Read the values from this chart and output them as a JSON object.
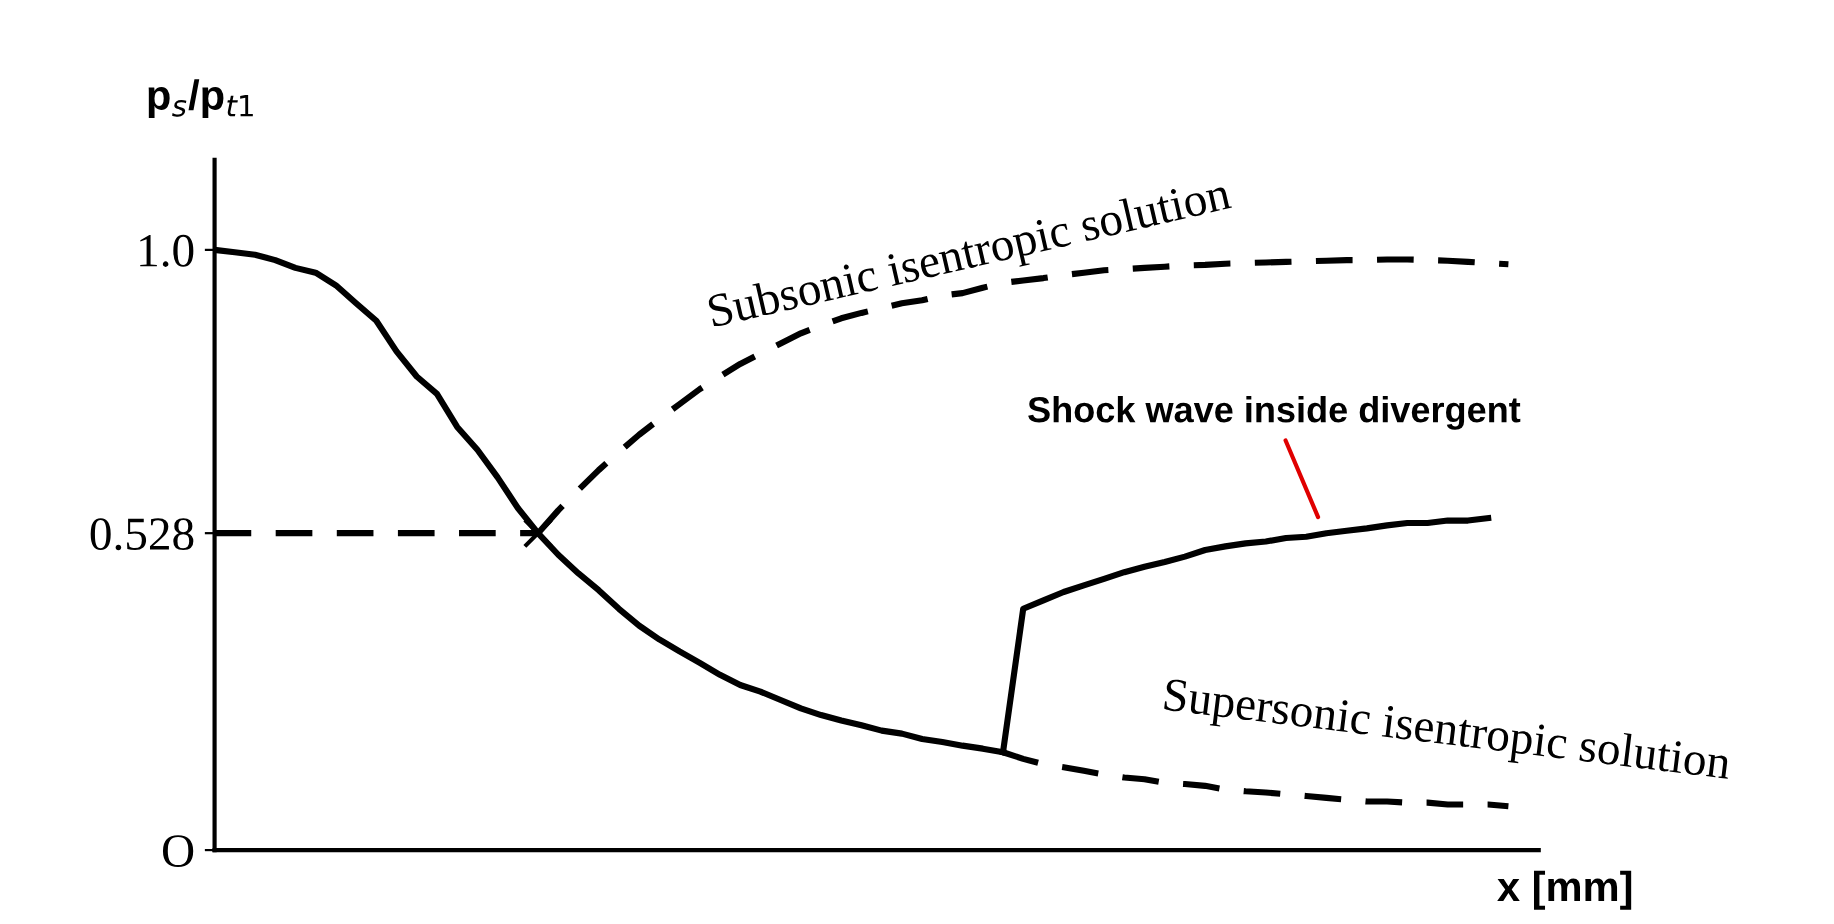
{
  "chart_data": {
    "type": "line",
    "xlabel": "x [mm]",
    "ylabel": "p$_{s}$/p$_{t1}$",
    "ylim": [
      0,
      1.15
    ],
    "yticks": [
      {
        "value": 0,
        "label": "O"
      },
      0.528,
      {
        "value": 1.0,
        "label": "1.0"
      }
    ],
    "tick_labels": "y",
    "categories": [
      null,
      null,
      null,
      null,
      null,
      null,
      null,
      null,
      null,
      null,
      null,
      null,
      null,
      null,
      null,
      null,
      null,
      null,
      null,
      null,
      null,
      null,
      null,
      null,
      null,
      null,
      null,
      null,
      null,
      null,
      null,
      null,
      null,
      null,
      null,
      null,
      null,
      null,
      null,
      null,
      null,
      null,
      null,
      null,
      null,
      null,
      null,
      null,
      null,
      null,
      null,
      null,
      null,
      null,
      null,
      null,
      null,
      null,
      null,
      null,
      null,
      null,
      null,
      null,
      null
    ],
    "series": [
      {
        "color": "#000000",
        "line_style": "solid",
        "values": [
          1.0,
          0.996,
          0.992,
          0.983,
          0.97,
          0.962,
          0.941,
          0.911,
          0.882,
          0.831,
          0.789,
          0.76,
          0.705,
          0.667,
          0.621,
          0.57,
          0.528,
          0.492,
          0.461,
          0.433,
          0.402,
          0.374,
          0.351,
          0.331,
          0.312,
          0.292,
          0.275,
          0.264,
          0.25,
          0.236,
          0.225,
          0.216,
          0.208,
          0.199,
          0.194,
          0.185,
          0.18,
          0.174,
          0.169,
          0.163,
          null,
          null,
          null,
          null,
          null,
          null,
          null,
          null,
          null,
          null,
          null,
          null,
          null,
          null,
          null,
          null,
          null,
          null,
          null,
          null,
          null,
          null,
          null,
          null,
          null
        ]
      },
      {
        "color": "#000000",
        "line_style": "dashed",
        "values": [
          null,
          null,
          null,
          null,
          null,
          null,
          null,
          null,
          null,
          null,
          null,
          null,
          null,
          null,
          null,
          null,
          0.528,
          0.566,
          0.6,
          0.633,
          0.663,
          0.692,
          0.718,
          0.743,
          0.768,
          0.789,
          0.81,
          0.827,
          0.844,
          0.861,
          0.874,
          0.886,
          0.895,
          0.903,
          0.911,
          0.916,
          0.924,
          0.928,
          0.937,
          0.945,
          0.949,
          0.953,
          0.958,
          0.962,
          0.966,
          0.968,
          0.97,
          0.972,
          0.974,
          0.975,
          0.977,
          0.978,
          0.979,
          0.98,
          0.981,
          0.982,
          0.983,
          0.983,
          0.984,
          0.984,
          0.983,
          0.982,
          0.98,
          0.978,
          0.976
        ]
      },
      {
        "color": "#000000",
        "line_style": "dashed",
        "values": [
          null,
          null,
          null,
          null,
          null,
          null,
          null,
          null,
          null,
          null,
          null,
          null,
          null,
          null,
          null,
          null,
          null,
          null,
          null,
          null,
          null,
          null,
          null,
          null,
          null,
          null,
          null,
          null,
          null,
          null,
          null,
          null,
          null,
          null,
          null,
          null,
          null,
          null,
          null,
          0.163,
          0.152,
          0.143,
          0.138,
          0.132,
          0.126,
          0.121,
          0.118,
          0.112,
          0.11,
          0.107,
          0.101,
          0.098,
          0.096,
          0.093,
          0.09,
          0.087,
          0.084,
          0.081,
          0.081,
          0.079,
          0.079,
          0.076,
          0.076,
          0.076,
          0.073
        ]
      },
      {
        "color": "#000000",
        "line_style": "solid",
        "values": [
          null,
          null,
          null,
          null,
          null,
          null,
          null,
          null,
          null,
          null,
          null,
          null,
          null,
          null,
          null,
          null,
          null,
          null,
          null,
          null,
          null,
          null,
          null,
          null,
          null,
          null,
          null,
          null,
          null,
          null,
          null,
          null,
          null,
          null,
          null,
          null,
          null,
          null,
          null,
          0.163,
          0.402,
          0.416,
          0.43,
          0.441,
          0.452,
          0.463,
          0.472,
          0.48,
          0.489,
          0.5,
          0.506,
          0.511,
          0.514,
          0.52,
          0.522,
          0.528,
          0.532,
          0.536,
          0.541,
          0.545,
          0.545,
          0.549,
          0.549,
          0.553,
          null
        ]
      },
      {
        "color": "#000000",
        "line_style": "dashed",
        "values": [
          0.528,
          0.528,
          0.528,
          0.528,
          0.528,
          0.528,
          0.528,
          0.528,
          0.528,
          0.528,
          0.528,
          0.528,
          0.528,
          0.528,
          0.528,
          0.528,
          0.528,
          null,
          null,
          null,
          null,
          null,
          null,
          null,
          null,
          null,
          null,
          null,
          null,
          null,
          null,
          null,
          null,
          null,
          null,
          null,
          null,
          null,
          null,
          null,
          null,
          null,
          null,
          null,
          null,
          null,
          null,
          null,
          null,
          null,
          null,
          null,
          null,
          null,
          null,
          null,
          null,
          null,
          null,
          null,
          null,
          null,
          null,
          null,
          null
        ]
      },
      {
        "type": "scatter",
        "marker": "cross",
        "color": "#000000",
        "values": [
          null,
          null,
          null,
          null,
          null,
          null,
          null,
          null,
          null,
          null,
          null,
          null,
          null,
          null,
          null,
          null,
          0.528,
          null,
          null,
          null,
          null,
          null,
          null,
          null,
          null,
          null,
          null,
          null,
          null,
          null,
          null,
          null,
          null,
          null,
          null,
          null,
          null,
          null,
          null,
          null,
          null,
          null,
          null,
          null,
          null,
          null,
          null,
          null,
          null,
          null,
          null,
          null,
          null,
          null,
          null,
          null,
          null,
          null,
          null,
          null,
          null,
          null,
          null,
          null,
          null
        ]
      }
    ],
    "annotations": [
      "Subsonic isentropic solution",
      "Supersonic isentropic solution",
      "Shock wave inside divergent"
    ]
  }
}
